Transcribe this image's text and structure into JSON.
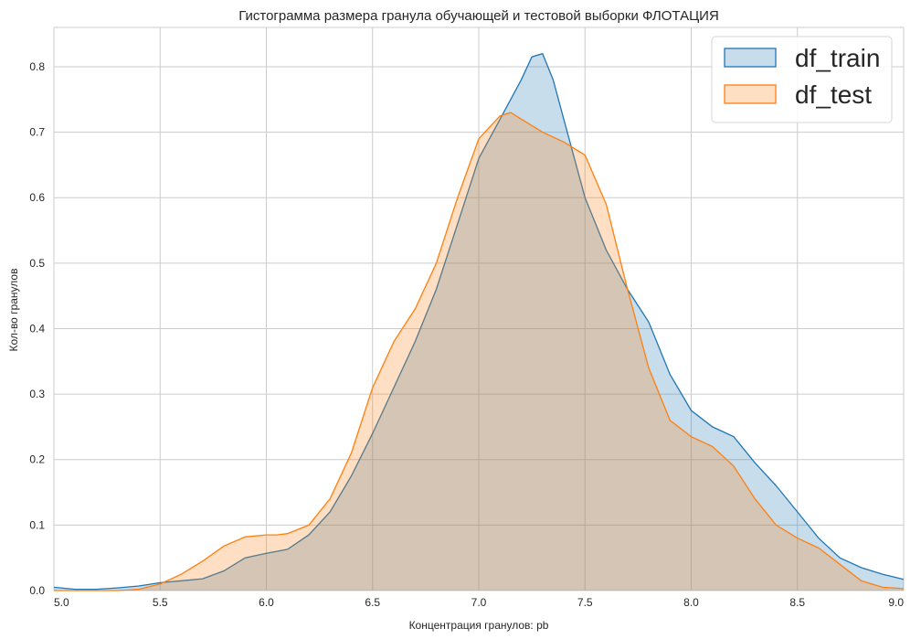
{
  "chart_data": {
    "type": "area",
    "title": "Гистограмма размера гранула обучающей и тестовой выборки ФЛОТАЦИЯ",
    "xlabel": "Концентрация гранулов: pb",
    "ylabel": "Кол-во гранулов",
    "xlim": [
      5.0,
      9.0
    ],
    "ylim": [
      0.0,
      0.86
    ],
    "x_ticks": [
      "5.0",
      "5.5",
      "6.0",
      "6.5",
      "7.0",
      "7.5",
      "8.0",
      "8.5",
      "9.0"
    ],
    "y_ticks": [
      "0.0",
      "0.1",
      "0.2",
      "0.3",
      "0.4",
      "0.5",
      "0.6",
      "0.7",
      "0.8"
    ],
    "grid": true,
    "legend_position": "top-right",
    "series": [
      {
        "name": "df_train",
        "line_color": "#1f77b4",
        "fill_color": "#1f77b4",
        "fill_opacity": 0.25,
        "x": [
          5.0,
          5.1,
          5.2,
          5.3,
          5.4,
          5.5,
          5.6,
          5.7,
          5.8,
          5.9,
          6.0,
          6.1,
          6.2,
          6.3,
          6.4,
          6.5,
          6.6,
          6.7,
          6.8,
          6.9,
          7.0,
          7.1,
          7.2,
          7.25,
          7.3,
          7.35,
          7.4,
          7.5,
          7.6,
          7.7,
          7.8,
          7.9,
          8.0,
          8.1,
          8.2,
          8.3,
          8.4,
          8.5,
          8.6,
          8.7,
          8.8,
          8.9,
          9.0
        ],
        "y": [
          0.005,
          0.002,
          0.002,
          0.004,
          0.007,
          0.012,
          0.015,
          0.018,
          0.03,
          0.05,
          0.057,
          0.063,
          0.085,
          0.12,
          0.175,
          0.24,
          0.31,
          0.38,
          0.46,
          0.56,
          0.66,
          0.72,
          0.78,
          0.815,
          0.82,
          0.78,
          0.72,
          0.6,
          0.52,
          0.46,
          0.41,
          0.33,
          0.275,
          0.25,
          0.235,
          0.195,
          0.16,
          0.12,
          0.08,
          0.05,
          0.035,
          0.025,
          0.017
        ]
      },
      {
        "name": "df_test",
        "line_color": "#ff7f0e",
        "fill_color": "#ff7f0e",
        "fill_opacity": 0.25,
        "x": [
          5.0,
          5.3,
          5.4,
          5.5,
          5.6,
          5.7,
          5.8,
          5.9,
          6.0,
          6.05,
          6.1,
          6.2,
          6.3,
          6.4,
          6.5,
          6.6,
          6.7,
          6.8,
          6.9,
          7.0,
          7.1,
          7.15,
          7.2,
          7.3,
          7.4,
          7.5,
          7.6,
          7.7,
          7.8,
          7.9,
          8.0,
          8.1,
          8.2,
          8.3,
          8.4,
          8.5,
          8.6,
          8.7,
          8.8,
          8.9,
          9.0
        ],
        "y": [
          0.0,
          0.0,
          0.002,
          0.01,
          0.025,
          0.045,
          0.068,
          0.082,
          0.085,
          0.085,
          0.087,
          0.1,
          0.14,
          0.21,
          0.31,
          0.38,
          0.43,
          0.5,
          0.6,
          0.69,
          0.725,
          0.73,
          0.72,
          0.7,
          0.685,
          0.665,
          0.59,
          0.46,
          0.34,
          0.26,
          0.235,
          0.22,
          0.19,
          0.14,
          0.1,
          0.08,
          0.065,
          0.04,
          0.015,
          0.005,
          0.003
        ]
      }
    ]
  }
}
